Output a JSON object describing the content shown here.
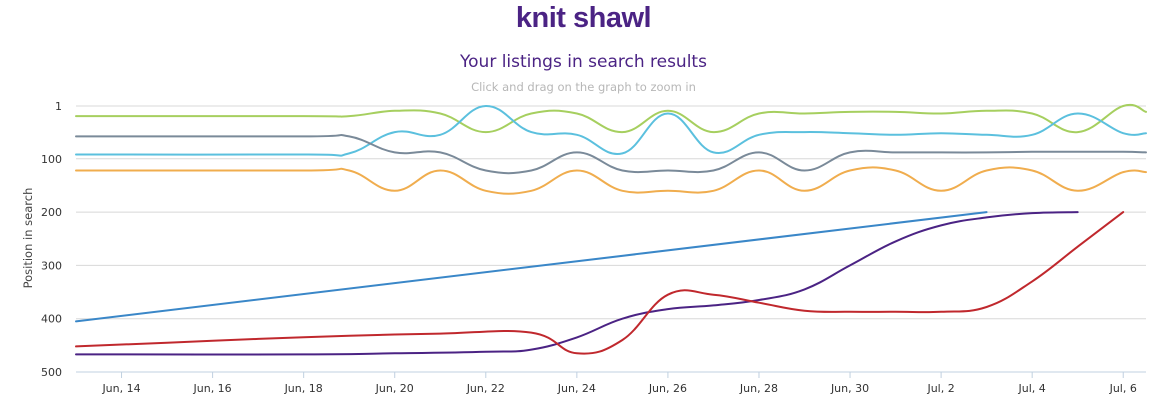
{
  "page": {
    "heading": "knit shawl"
  },
  "chart_data": {
    "type": "line",
    "title": "Your listings in search results",
    "subtitle": "Click and drag on the graph to zoom in",
    "xlabel": "",
    "ylabel": "Position in search",
    "y_reversed": true,
    "ylim": [
      1,
      500
    ],
    "y_ticks": [
      1,
      100,
      200,
      300,
      400,
      500
    ],
    "x_range": [
      "2013-06-13",
      "2013-07-06"
    ],
    "x_tick_labels": [
      "Jun, 14",
      "Jun, 16",
      "Jun, 18",
      "Jun, 20",
      "Jun, 22",
      "Jun, 24",
      "Jun, 26",
      "Jun, 28",
      "Jun, 30",
      "Jul, 2",
      "Jul, 4",
      "Jul, 6"
    ],
    "x_tick_dates": [
      "2013-06-14",
      "2013-06-16",
      "2013-06-18",
      "2013-06-20",
      "2013-06-22",
      "2013-06-24",
      "2013-06-26",
      "2013-06-28",
      "2013-06-30",
      "2013-07-02",
      "2013-07-04",
      "2013-07-06"
    ],
    "grid": true,
    "legend": "none",
    "series": [
      {
        "color": "#a6cf5f",
        "points": [
          [
            "2013-06-13",
            20
          ],
          [
            "2013-06-18",
            20
          ],
          [
            "2013-06-19",
            20
          ],
          [
            "2013-06-20",
            10
          ],
          [
            "2013-06-21",
            15
          ],
          [
            "2013-06-22",
            50
          ],
          [
            "2013-06-23",
            15
          ],
          [
            "2013-06-24",
            15
          ],
          [
            "2013-06-25",
            50
          ],
          [
            "2013-06-26",
            10
          ],
          [
            "2013-06-27",
            50
          ],
          [
            "2013-06-28",
            15
          ],
          [
            "2013-06-29",
            15
          ],
          [
            "2013-06-30",
            12
          ],
          [
            "2013-07-01",
            12
          ],
          [
            "2013-07-02",
            15
          ],
          [
            "2013-07-03",
            10
          ],
          [
            "2013-07-04",
            15
          ],
          [
            "2013-07-05",
            50
          ],
          [
            "2013-07-06",
            0
          ],
          [
            "2013-07-06T12:00",
            12
          ]
        ]
      },
      {
        "color": "#5bc0de",
        "points": [
          [
            "2013-06-13",
            92
          ],
          [
            "2013-06-18",
            92
          ],
          [
            "2013-06-19",
            90
          ],
          [
            "2013-06-20",
            50
          ],
          [
            "2013-06-21",
            55
          ],
          [
            "2013-06-22",
            0
          ],
          [
            "2013-06-23",
            50
          ],
          [
            "2013-06-24",
            55
          ],
          [
            "2013-06-25",
            90
          ],
          [
            "2013-06-26",
            15
          ],
          [
            "2013-06-27",
            88
          ],
          [
            "2013-06-28",
            55
          ],
          [
            "2013-06-29",
            50
          ],
          [
            "2013-06-30",
            52
          ],
          [
            "2013-07-01",
            55
          ],
          [
            "2013-07-02",
            52
          ],
          [
            "2013-07-03",
            55
          ],
          [
            "2013-07-04",
            55
          ],
          [
            "2013-07-05",
            15
          ],
          [
            "2013-07-06",
            52
          ],
          [
            "2013-07-06T12:00",
            52
          ]
        ]
      },
      {
        "color": "#7a8a99",
        "points": [
          [
            "2013-06-13",
            58
          ],
          [
            "2013-06-18",
            58
          ],
          [
            "2013-06-19",
            58
          ],
          [
            "2013-06-20",
            88
          ],
          [
            "2013-06-21",
            88
          ],
          [
            "2013-06-22",
            122
          ],
          [
            "2013-06-23",
            122
          ],
          [
            "2013-06-24",
            88
          ],
          [
            "2013-06-25",
            122
          ],
          [
            "2013-06-26",
            122
          ],
          [
            "2013-06-27",
            122
          ],
          [
            "2013-06-28",
            88
          ],
          [
            "2013-06-29",
            122
          ],
          [
            "2013-06-30",
            88
          ],
          [
            "2013-07-01",
            88
          ],
          [
            "2013-07-02",
            88
          ],
          [
            "2013-07-03",
            88
          ],
          [
            "2013-07-04",
            87
          ],
          [
            "2013-07-05",
            87
          ],
          [
            "2013-07-06",
            87
          ],
          [
            "2013-07-06T12:00",
            88
          ]
        ]
      },
      {
        "color": "#f0ad4e",
        "points": [
          [
            "2013-06-13",
            122
          ],
          [
            "2013-06-18",
            122
          ],
          [
            "2013-06-19",
            122
          ],
          [
            "2013-06-20",
            160
          ],
          [
            "2013-06-21",
            122
          ],
          [
            "2013-06-22",
            160
          ],
          [
            "2013-06-23",
            160
          ],
          [
            "2013-06-24",
            122
          ],
          [
            "2013-06-25",
            160
          ],
          [
            "2013-06-26",
            160
          ],
          [
            "2013-06-27",
            160
          ],
          [
            "2013-06-28",
            122
          ],
          [
            "2013-06-29",
            160
          ],
          [
            "2013-06-30",
            122
          ],
          [
            "2013-07-01",
            122
          ],
          [
            "2013-07-02",
            160
          ],
          [
            "2013-07-03",
            122
          ],
          [
            "2013-07-04",
            122
          ],
          [
            "2013-07-05",
            160
          ],
          [
            "2013-07-06",
            125
          ],
          [
            "2013-07-06T12:00",
            125
          ]
        ]
      },
      {
        "color": "#3a87c8",
        "points": [
          [
            "2013-06-13",
            405
          ],
          [
            "2013-07-03",
            200
          ]
        ]
      },
      {
        "color": "#4b2384",
        "points": [
          [
            "2013-06-13",
            467
          ],
          [
            "2013-06-18",
            467
          ],
          [
            "2013-06-20",
            465
          ],
          [
            "2013-06-22",
            462
          ],
          [
            "2013-06-23",
            458
          ],
          [
            "2013-06-24",
            435
          ],
          [
            "2013-06-25",
            400
          ],
          [
            "2013-06-26",
            382
          ],
          [
            "2013-06-27",
            375
          ],
          [
            "2013-06-28",
            365
          ],
          [
            "2013-06-29",
            345
          ],
          [
            "2013-06-30",
            300
          ],
          [
            "2013-07-01",
            255
          ],
          [
            "2013-07-02",
            225
          ],
          [
            "2013-07-03",
            210
          ],
          [
            "2013-07-04",
            202
          ],
          [
            "2013-07-05",
            200
          ]
        ]
      },
      {
        "color": "#c0282d",
        "points": [
          [
            "2013-06-13",
            452
          ],
          [
            "2013-06-15",
            445
          ],
          [
            "2013-06-17",
            438
          ],
          [
            "2013-06-19",
            432
          ],
          [
            "2013-06-21",
            428
          ],
          [
            "2013-06-23",
            426
          ],
          [
            "2013-06-24",
            465
          ],
          [
            "2013-06-25",
            440
          ],
          [
            "2013-06-26",
            355
          ],
          [
            "2013-06-27",
            355
          ],
          [
            "2013-06-28",
            370
          ],
          [
            "2013-06-29",
            385
          ],
          [
            "2013-06-30",
            387
          ],
          [
            "2013-07-01",
            387
          ],
          [
            "2013-07-02",
            387
          ],
          [
            "2013-07-03",
            378
          ],
          [
            "2013-07-04",
            330
          ],
          [
            "2013-07-05",
            265
          ],
          [
            "2013-07-06",
            200
          ]
        ]
      }
    ]
  }
}
